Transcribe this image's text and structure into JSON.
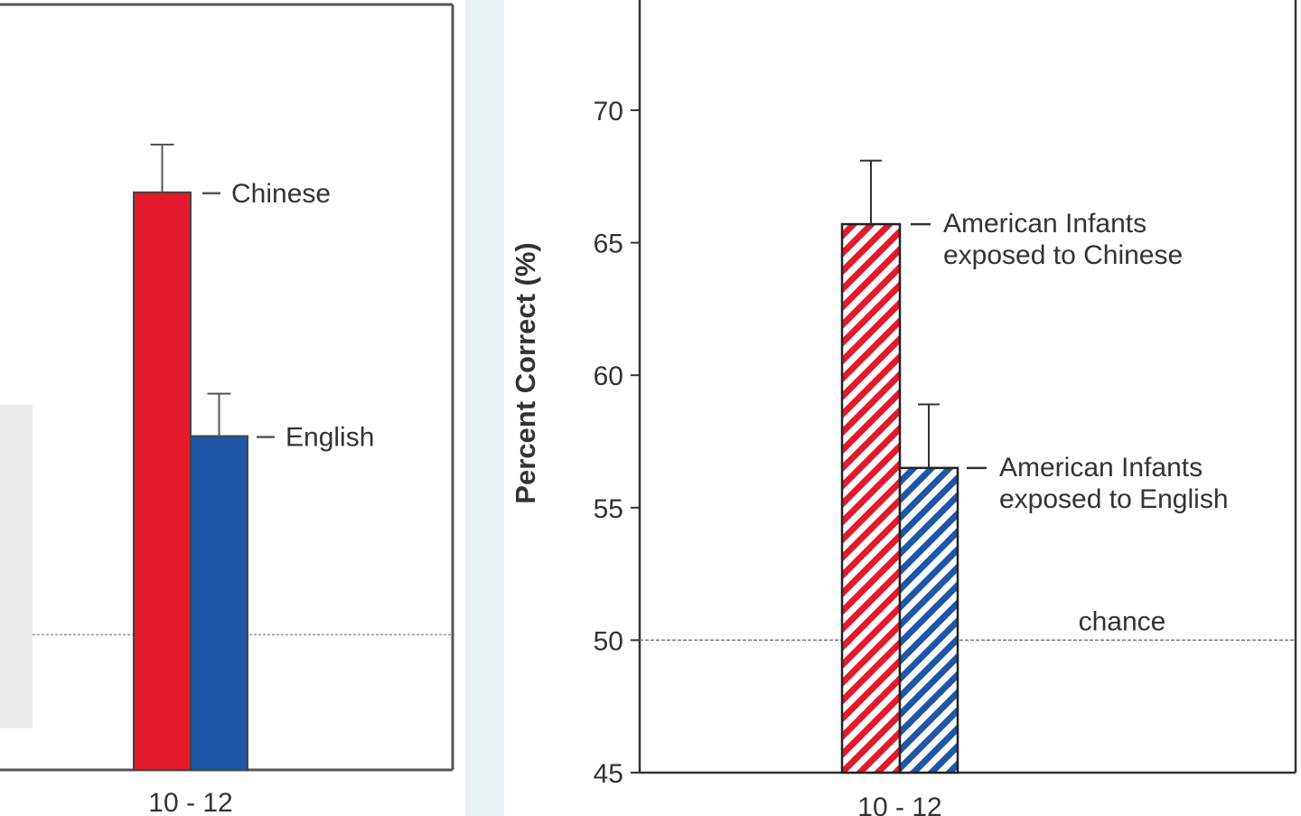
{
  "chart_data": [
    {
      "type": "bar",
      "categories": [
        "10 - 12"
      ],
      "ylim": [
        45,
        72
      ],
      "series": [
        {
          "name": "Chinese",
          "values": [
            66.8
          ],
          "error": [
            1.8
          ],
          "color": "#e21a2c",
          "pattern": "solid"
        },
        {
          "name": "English",
          "values": [
            57.6
          ],
          "error": [
            1.6
          ],
          "color": "#1f56a6",
          "pattern": "solid"
        }
      ],
      "reference_line": {
        "value": 50,
        "label": ""
      },
      "grid": false
    },
    {
      "type": "bar",
      "categories": [
        "10 - 12"
      ],
      "ylabel": "Percent Correct (%)",
      "ylim": [
        45,
        72
      ],
      "yticks": [
        45,
        50,
        55,
        60,
        65,
        70
      ],
      "series": [
        {
          "name": "American Infants exposed to Chinese",
          "label_lines": [
            "American Infants",
            "exposed to Chinese"
          ],
          "values": [
            65.7
          ],
          "error": [
            2.4
          ],
          "color": "#e21a2c",
          "pattern": "hatched"
        },
        {
          "name": "American Infants exposed to English",
          "label_lines": [
            "American Infants",
            "exposed to English"
          ],
          "values": [
            56.5
          ],
          "error": [
            2.4
          ],
          "color": "#1f56a6",
          "pattern": "hatched"
        }
      ],
      "reference_line": {
        "value": 50,
        "label": "chance"
      },
      "grid": false
    }
  ]
}
